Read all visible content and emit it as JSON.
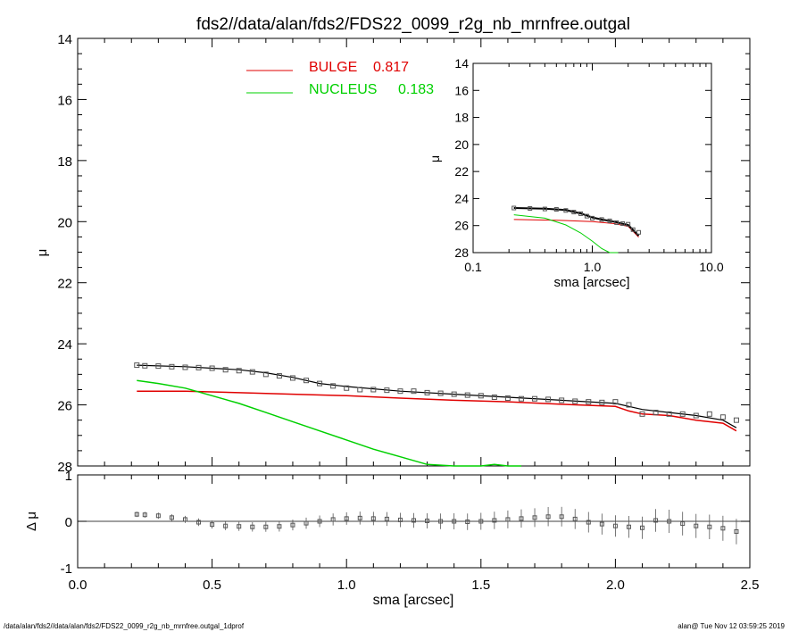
{
  "title": "fds2//data/alan/fds2/FDS22_0099_r2g_nb_mrnfree.outgal",
  "footer": {
    "left": "/data/alan/fds2//data/alan/fds2/FDS22_0099_r2g_nb_mrnfree.outgal_1dprof",
    "right": "alan@  Tue Nov 12 03:59:25 2019"
  },
  "colors": {
    "bulge": "#e00000",
    "nucleus": "#00d000",
    "data": "#555555",
    "model": "#000000",
    "axes": "#000000"
  },
  "legend": [
    {
      "name": "BULGE",
      "value": "0.817",
      "color": "#e00000"
    },
    {
      "name": "NUCLEUS",
      "value": "0.183",
      "color": "#00d000"
    }
  ],
  "chart_data": [
    {
      "type": "line",
      "ylabel": "μ",
      "xlim": [
        0.0,
        2.5
      ],
      "ylim": [
        28,
        14
      ],
      "y_inverted": true,
      "yticks": [
        "14",
        "16",
        "18",
        "20",
        "22",
        "24",
        "26",
        "28"
      ],
      "xticks": [
        "0.0",
        "0.5",
        "1.0",
        "1.5",
        "2.0",
        "2.5"
      ],
      "series": [
        {
          "name": "BULGE",
          "x": [
            0.22,
            0.4,
            0.6,
            0.8,
            1.0,
            1.2,
            1.4,
            1.6,
            1.8,
            2.0,
            2.05,
            2.1,
            2.2,
            2.3,
            2.4,
            2.45
          ],
          "y": [
            25.55,
            25.55,
            25.6,
            25.65,
            25.7,
            25.78,
            25.85,
            25.9,
            25.98,
            26.05,
            26.2,
            26.3,
            26.35,
            26.5,
            26.6,
            26.85
          ]
        },
        {
          "name": "NUCLEUS",
          "x": [
            0.22,
            0.3,
            0.4,
            0.5,
            0.6,
            0.7,
            0.8,
            0.9,
            1.0,
            1.1,
            1.2,
            1.3,
            1.4,
            1.45,
            1.5,
            1.55,
            1.6,
            1.65
          ],
          "y": [
            25.2,
            25.3,
            25.45,
            25.7,
            25.95,
            26.25,
            26.55,
            26.85,
            27.15,
            27.45,
            27.7,
            27.95,
            28.0,
            28.0,
            28.0,
            27.95,
            28.0,
            28.0
          ]
        },
        {
          "x": [
            0.22,
            0.4,
            0.5,
            0.6,
            0.7,
            0.8,
            0.9,
            1.0,
            1.2,
            1.4,
            1.6,
            1.8,
            2.0,
            2.1,
            2.2,
            2.3,
            2.4,
            2.45
          ],
          "y": [
            24.7,
            24.75,
            24.8,
            24.85,
            24.95,
            25.1,
            25.3,
            25.4,
            25.55,
            25.65,
            25.75,
            25.85,
            25.95,
            26.15,
            26.25,
            26.35,
            26.5,
            26.75
          ]
        },
        {
          "x": [
            0.22,
            0.25,
            0.3,
            0.35,
            0.4,
            0.45,
            0.5,
            0.55,
            0.6,
            0.65,
            0.7,
            0.75,
            0.8,
            0.85,
            0.9,
            0.95,
            1.0,
            1.05,
            1.1,
            1.15,
            1.2,
            1.25,
            1.3,
            1.35,
            1.4,
            1.45,
            1.5,
            1.55,
            1.6,
            1.65,
            1.7,
            1.75,
            1.8,
            1.85,
            1.9,
            1.95,
            2.0,
            2.05,
            2.1,
            2.15,
            2.2,
            2.25,
            2.3,
            2.35,
            2.4,
            2.45
          ],
          "y": [
            24.7,
            24.72,
            24.73,
            24.75,
            24.77,
            24.78,
            24.8,
            24.85,
            24.88,
            24.92,
            25.0,
            25.05,
            25.12,
            25.2,
            25.3,
            25.38,
            25.45,
            25.5,
            25.5,
            25.52,
            25.55,
            25.55,
            25.6,
            25.62,
            25.65,
            25.68,
            25.7,
            25.75,
            25.78,
            25.8,
            25.8,
            25.82,
            25.85,
            25.88,
            25.9,
            25.92,
            25.9,
            26.0,
            26.3,
            26.25,
            26.3,
            26.3,
            26.35,
            26.3,
            26.4,
            26.5
          ]
        }
      ]
    },
    {
      "type": "scatter",
      "ylabel": "Δ μ",
      "xlabel": "sma [arcsec]",
      "xlim": [
        0.0,
        2.5
      ],
      "ylim": [
        -1,
        1
      ],
      "yticks": [
        "1",
        "0",
        "-1"
      ],
      "xticks": [
        "0.0",
        "0.5",
        "1.0",
        "1.5",
        "2.0",
        "2.5"
      ],
      "series": [
        {
          "x": [
            0.22,
            0.25,
            0.3,
            0.35,
            0.4,
            0.45,
            0.5,
            0.55,
            0.6,
            0.65,
            0.7,
            0.75,
            0.8,
            0.85,
            0.9,
            0.95,
            1.0,
            1.05,
            1.1,
            1.15,
            1.2,
            1.25,
            1.3,
            1.35,
            1.4,
            1.45,
            1.5,
            1.55,
            1.6,
            1.65,
            1.7,
            1.75,
            1.8,
            1.85,
            1.9,
            1.95,
            2.0,
            2.05,
            2.1,
            2.15,
            2.2,
            2.25,
            2.3,
            2.35,
            2.4,
            2.45
          ],
          "y": [
            0.15,
            0.14,
            0.12,
            0.08,
            0.04,
            -0.02,
            -0.07,
            -0.1,
            -0.11,
            -0.12,
            -0.12,
            -0.11,
            -0.08,
            -0.04,
            0.0,
            0.04,
            0.06,
            0.07,
            0.06,
            0.05,
            0.03,
            0.02,
            0.01,
            0.0,
            0.0,
            -0.01,
            0.0,
            0.02,
            0.04,
            0.06,
            0.08,
            0.1,
            0.1,
            0.05,
            -0.02,
            -0.06,
            -0.1,
            -0.12,
            -0.14,
            0.02,
            0.0,
            -0.05,
            -0.1,
            -0.12,
            -0.15,
            -0.22
          ]
        }
      ]
    },
    {
      "type": "line",
      "ylabel": "μ",
      "xlabel": "sma [arcsec]",
      "xscale": "log",
      "xlim": [
        0.1,
        10.0
      ],
      "ylim": [
        28,
        14
      ],
      "y_inverted": true,
      "yticks": [
        "14",
        "16",
        "18",
        "20",
        "22",
        "24",
        "26",
        "28"
      ],
      "xticks": [
        "0.1",
        "1.0",
        "10.0"
      ],
      "series": [
        {
          "name": "BULGE",
          "x": [
            0.22,
            0.5,
            1.0,
            1.5,
            2.0,
            2.45
          ],
          "y": [
            25.55,
            25.6,
            25.7,
            25.85,
            26.05,
            26.85
          ]
        },
        {
          "name": "NUCLEUS",
          "x": [
            0.22,
            0.4,
            0.6,
            0.8,
            1.0,
            1.2,
            1.4,
            1.65
          ],
          "y": [
            25.2,
            25.45,
            25.95,
            26.55,
            27.15,
            27.7,
            28.0,
            28.0
          ]
        },
        {
          "x": [
            0.22,
            0.4,
            0.6,
            0.8,
            1.0,
            1.2,
            1.5,
            2.0,
            2.45
          ],
          "y": [
            24.7,
            24.75,
            24.85,
            25.1,
            25.4,
            25.55,
            25.7,
            25.95,
            26.75
          ]
        },
        {
          "x": [
            0.22,
            0.3,
            0.4,
            0.5,
            0.6,
            0.7,
            0.8,
            0.9,
            1.0,
            1.2,
            1.4,
            1.6,
            1.8,
            2.0,
            2.2,
            2.45
          ],
          "y": [
            24.7,
            24.73,
            24.77,
            24.8,
            24.88,
            25.0,
            25.12,
            25.3,
            25.45,
            25.55,
            25.65,
            25.78,
            25.85,
            25.9,
            26.3,
            26.5
          ]
        }
      ]
    }
  ]
}
